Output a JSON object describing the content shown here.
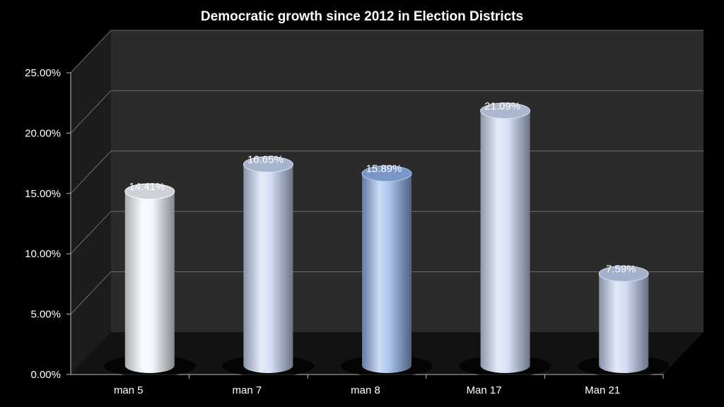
{
  "chart_data": {
    "type": "bar",
    "title": "Democratic growth since 2012 in Election Districts",
    "categories": [
      "man 5",
      "man 7",
      "man 8",
      "Man 17",
      "Man 21"
    ],
    "values": [
      14.41,
      16.65,
      15.89,
      21.09,
      7.59
    ],
    "value_labels": [
      "14.41%",
      "16.65%",
      "15.89%",
      "21.09%",
      "7.59%"
    ],
    "y_ticks": [
      "0.00%",
      "5.00%",
      "10.00%",
      "15.00%",
      "20.00%",
      "25.00%"
    ],
    "ylim": [
      0,
      25
    ],
    "xlabel": "",
    "ylabel": "",
    "grid": true,
    "style": "3d-cylinder",
    "colors": {
      "background": "#000000",
      "back_wall": "#2b2b2b",
      "side_wall": "#1c1c1c",
      "floor": "#121212",
      "gridline": "#6e6e6e",
      "text": "#ffffff"
    },
    "bar_colors": [
      "#f2f6fd",
      "#c4d4f2",
      "#8fb0ea",
      "#c8d7f3",
      "#c0d0f0"
    ]
  }
}
